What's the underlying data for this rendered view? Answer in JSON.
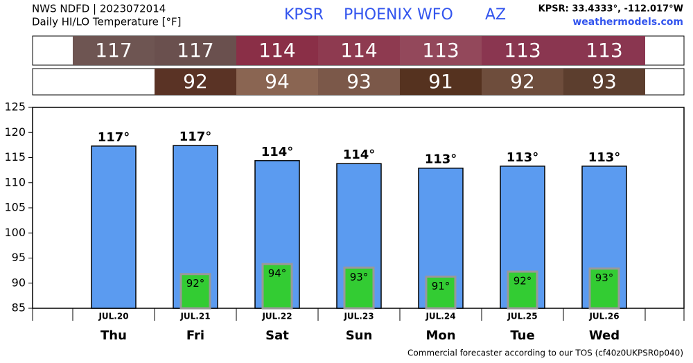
{
  "chart_data": {
    "type": "bar",
    "source": "NWS NDFD | 2023072014",
    "subtitle": "Daily HI/LO Temperature [°F]",
    "title": [
      "KPSR",
      "PHOENIX WFO",
      "AZ"
    ],
    "location": "KPSR: 33.4333°, -112.017°W",
    "site": "weathermodels.com",
    "footer": "Commercial forecaster according to our TOS (cf40z0UKPSR0p040)",
    "strips": {
      "high": {
        "values": [
          117,
          117,
          114,
          114,
          113,
          113,
          113
        ],
        "colors": [
          "#6e5552",
          "#6a504e",
          "#8a2f47",
          "#8e3a50",
          "#93485b",
          "#8a3650",
          "#8a3650"
        ]
      },
      "low": {
        "values": [
          null,
          92,
          94,
          93,
          91,
          92,
          93
        ],
        "colors": [
          null,
          "#5a3325",
          "#8a6552",
          "#7b5849",
          "#55321f",
          "#6e4d3c",
          "#5c3e2e"
        ]
      }
    },
    "dates": [
      "JUL.20",
      "JUL.21",
      "JUL.22",
      "JUL.23",
      "JUL.24",
      "JUL.25",
      "JUL.26"
    ],
    "categories": [
      "Thu",
      "Fri",
      "Sat",
      "Sun",
      "Mon",
      "Tue",
      "Wed"
    ],
    "series": [
      {
        "color": "#5b9bf0",
        "values": [
          117.3,
          117.4,
          114.4,
          113.8,
          112.9,
          113.3,
          113.3
        ],
        "value_labels": [
          "117°",
          "117°",
          "114°",
          "114°",
          "113°",
          "113°",
          "113°"
        ]
      },
      {
        "color": "#33cc33",
        "edge": "#999999",
        "values": [
          null,
          91.8,
          93.8,
          93.1,
          91.3,
          92.3,
          92.9
        ],
        "value_labels": [
          null,
          "92°",
          "94°",
          "93°",
          "91°",
          "92°",
          "93°"
        ]
      }
    ],
    "ylim": [
      85,
      125
    ],
    "yticks": [
      85,
      90,
      95,
      100,
      105,
      110,
      115,
      120,
      125
    ]
  }
}
